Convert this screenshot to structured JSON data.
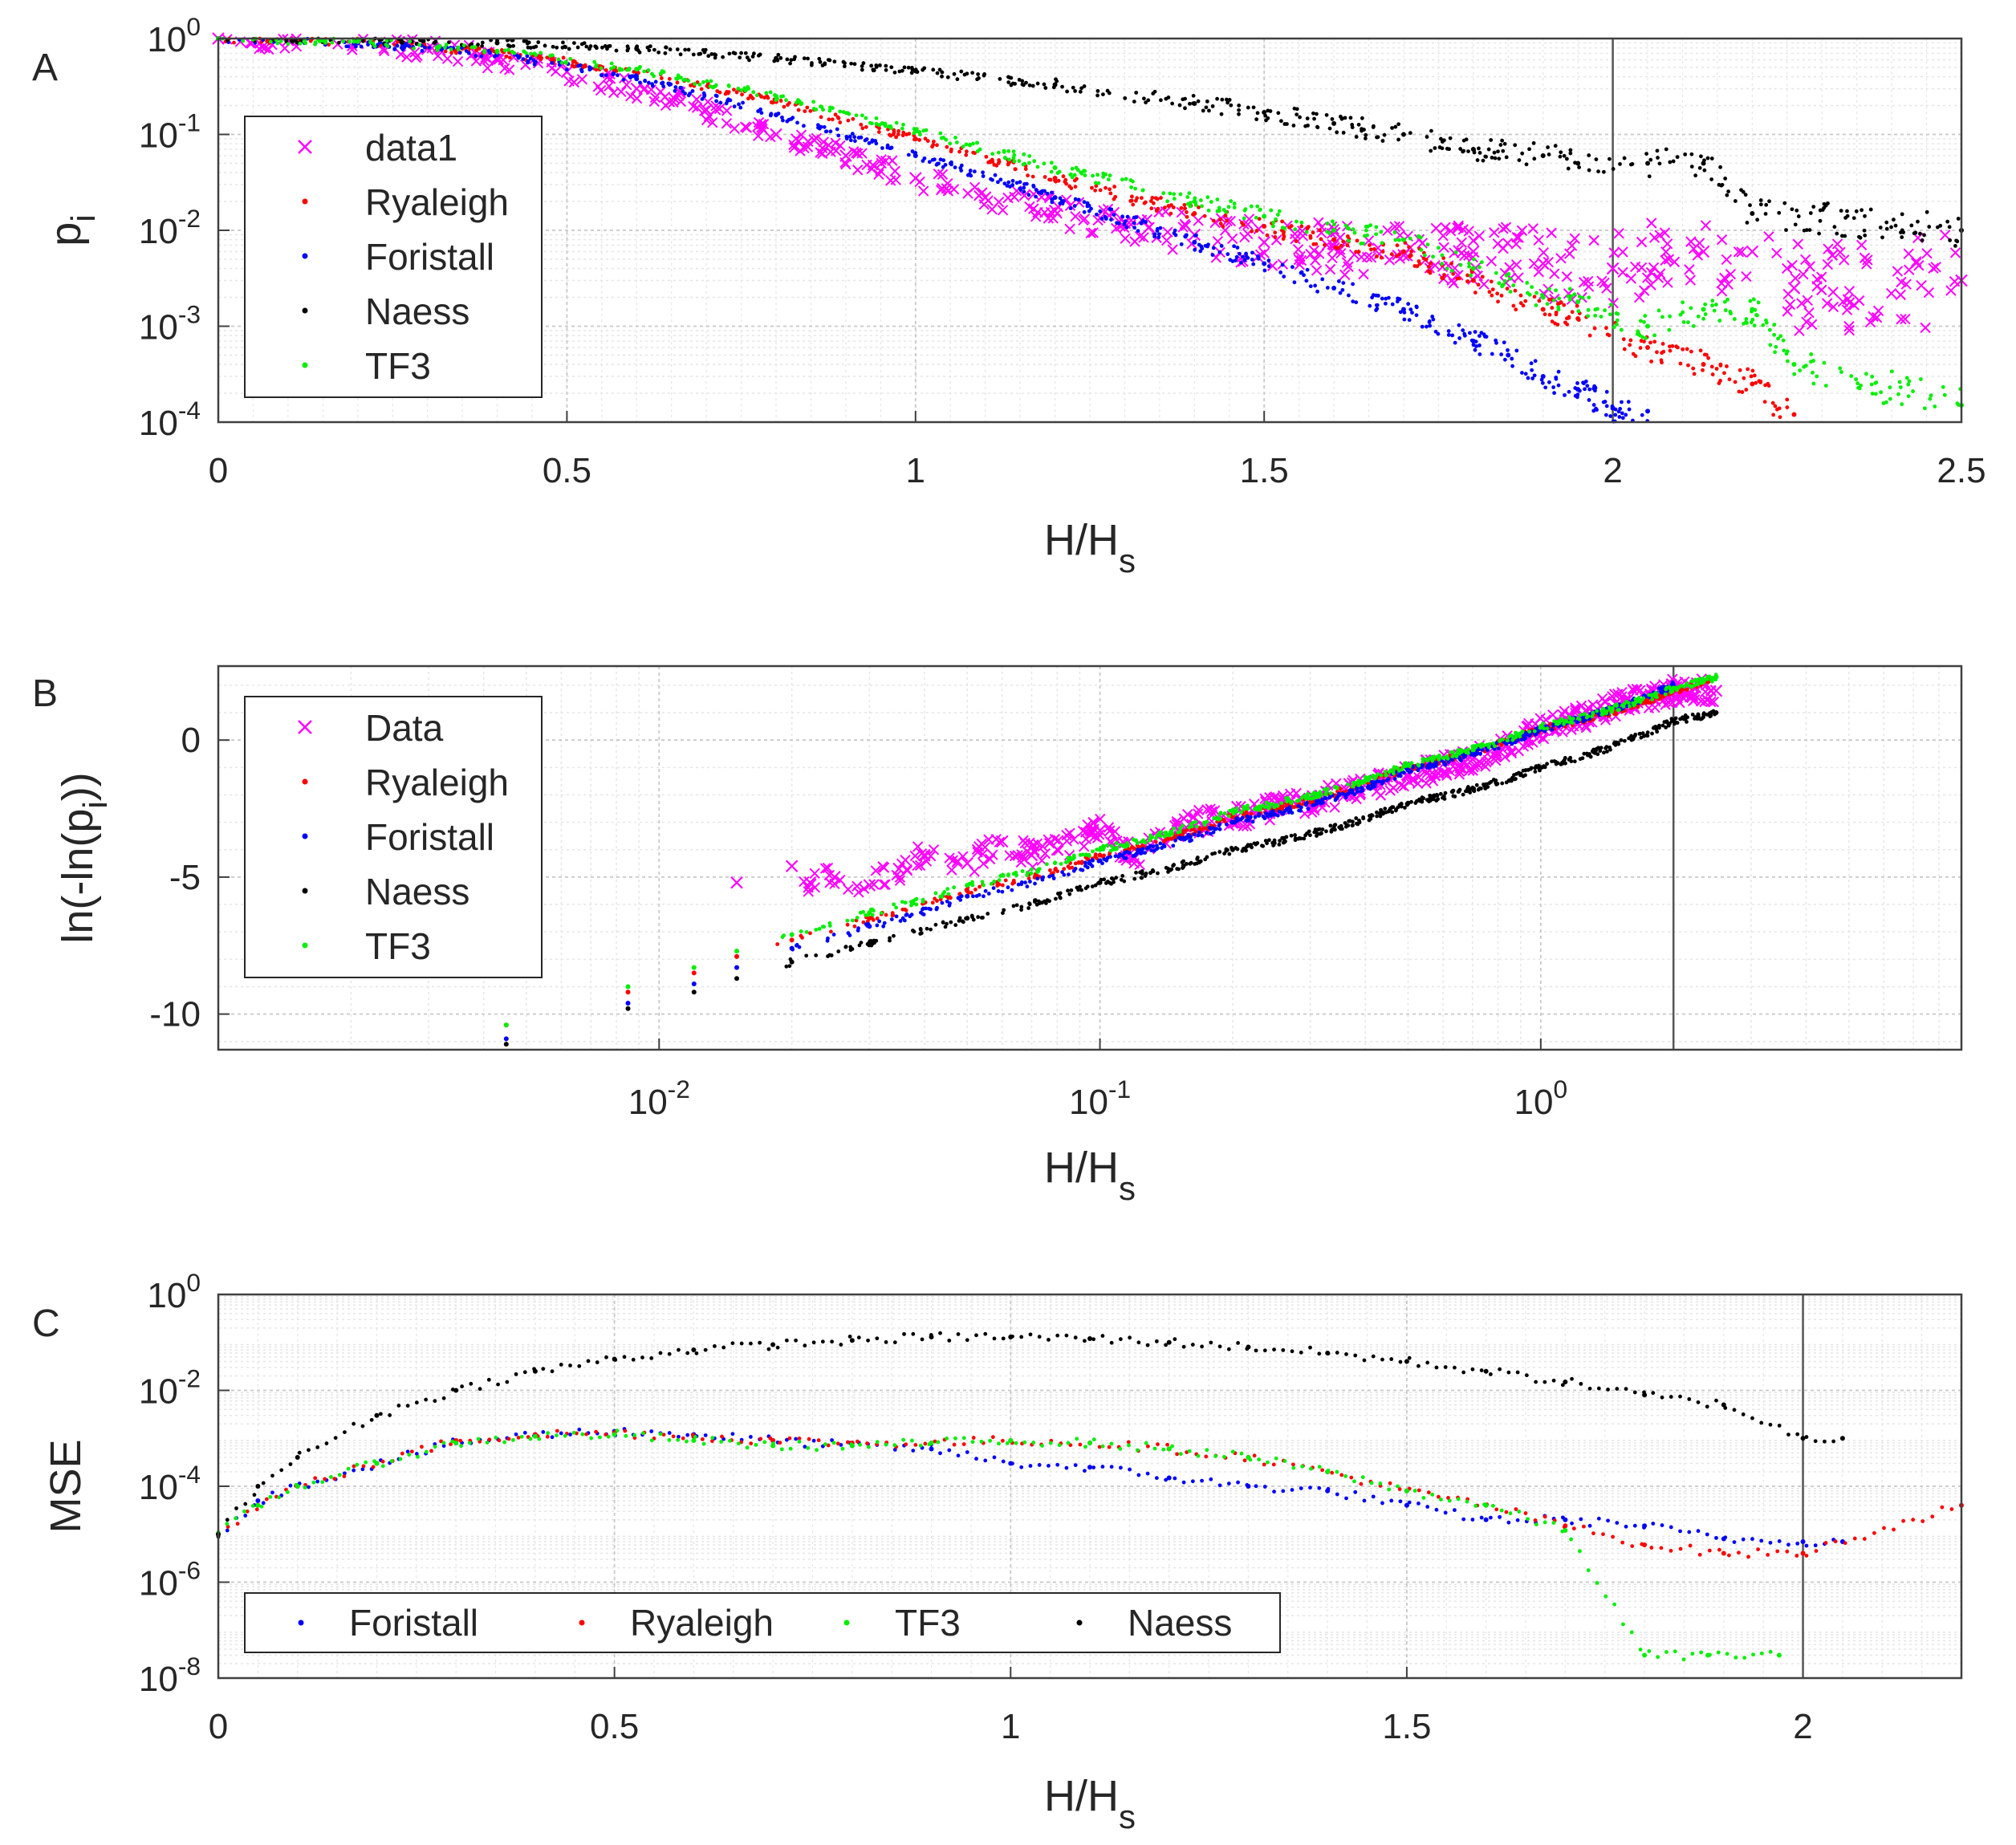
{
  "colors": {
    "data": "#ff00ff",
    "ryaleigh": "#ff0000",
    "foristall": "#0000ff",
    "naess": "#000000",
    "tf3": "#00ee00",
    "grid_major": "#c8c8c8",
    "grid_minor": "#e6e6e6",
    "axes": "#404040"
  },
  "chart_data": [
    {
      "id": "A",
      "panel_label": "A",
      "type": "scatter",
      "x_scale": "linear",
      "y_scale": "log",
      "xlim": [
        0,
        2.5
      ],
      "ylim": [
        0.0001,
        1
      ],
      "xticks": [
        {
          "v": 0,
          "label": "0"
        },
        {
          "v": 0.5,
          "label": "0.5"
        },
        {
          "v": 1,
          "label": "1"
        },
        {
          "v": 1.5,
          "label": "1.5"
        },
        {
          "v": 2,
          "label": "2"
        },
        {
          "v": 2.5,
          "label": "2.5"
        }
      ],
      "yticks": [
        {
          "v": 0.0001,
          "base": "10",
          "exp": "-4"
        },
        {
          "v": 0.001,
          "base": "10",
          "exp": "-3"
        },
        {
          "v": 0.01,
          "base": "10",
          "exp": "-2"
        },
        {
          "v": 0.1,
          "base": "10",
          "exp": "-1"
        },
        {
          "v": 1,
          "base": "10",
          "exp": "0"
        }
      ],
      "xlabel": {
        "main": "H/H",
        "sub": "s"
      },
      "ylabel": {
        "main": "p",
        "sub": "i"
      },
      "vline": 2,
      "legend_position": "left",
      "legend": [
        {
          "label": "data1",
          "color": "#ff00ff",
          "marker": "x"
        },
        {
          "label": "Ryaleigh",
          "color": "#ff0000",
          "marker": "dot"
        },
        {
          "label": "Foristall",
          "color": "#0000ff",
          "marker": "dot"
        },
        {
          "label": "Naess",
          "color": "#000000",
          "marker": "dot"
        },
        {
          "label": "TF3",
          "color": "#00ee00",
          "marker": "dot"
        }
      ],
      "series": [
        {
          "name": "data1",
          "marker": "x",
          "color": "#ff00ff",
          "x": [
            0,
            0.1,
            0.2,
            0.3,
            0.4,
            0.5,
            0.6,
            0.7,
            0.8,
            0.9,
            1.0,
            1.1,
            1.2,
            1.3,
            1.4,
            1.5,
            1.6,
            1.7,
            1.8,
            1.9,
            2.0,
            2.13,
            2.2,
            2.26,
            2.5
          ],
          "y": [
            1,
            0.96,
            0.9,
            0.78,
            0.6,
            0.45,
            0.3,
            0.18,
            0.1,
            0.06,
            0.035,
            0.022,
            0.016,
            0.012,
            0.009,
            0.0075,
            0.0065,
            0.0055,
            0.006,
            0.0045,
            0.004,
            0.006,
            0.006,
            0.0025,
            0.003
          ]
        },
        {
          "name": "Ryaleigh",
          "marker": "dot",
          "color": "#ff0000",
          "x": [
            0,
            0.2,
            0.4,
            0.6,
            0.8,
            1.0,
            1.2,
            1.4,
            1.5,
            1.6,
            1.7,
            1.8,
            1.9,
            1.95,
            2.05,
            2.13,
            2.2,
            2.26
          ],
          "y": [
            1,
            0.92,
            0.72,
            0.45,
            0.22,
            0.09,
            0.035,
            0.015,
            0.011,
            0.008,
            0.006,
            0.003,
            0.0015,
            0.0012,
            0.0006,
            0.0004,
            0.00025,
            0.00012
          ]
        },
        {
          "name": "Foristall",
          "marker": "dot",
          "color": "#0000ff",
          "x": [
            0,
            0.2,
            0.4,
            0.6,
            0.8,
            1.0,
            1.2,
            1.4,
            1.5,
            1.6,
            1.7,
            1.8,
            1.85,
            1.9,
            1.95,
            2.0,
            2.05
          ],
          "y": [
            1,
            0.9,
            0.68,
            0.38,
            0.16,
            0.06,
            0.022,
            0.0075,
            0.0045,
            0.0025,
            0.0015,
            0.0007,
            0.0005,
            0.0003,
            0.00022,
            0.00014,
            0.00013
          ]
        },
        {
          "name": "Naess",
          "marker": "dot",
          "color": "#000000",
          "x": [
            0,
            0.2,
            0.4,
            0.6,
            0.8,
            1.0,
            1.2,
            1.4,
            1.5,
            1.6,
            1.7,
            1.8,
            1.9,
            1.95,
            2.05,
            2.13,
            2.2,
            2.5
          ],
          "y": [
            1,
            0.97,
            0.9,
            0.78,
            0.62,
            0.46,
            0.33,
            0.21,
            0.17,
            0.13,
            0.1,
            0.07,
            0.06,
            0.05,
            0.05,
            0.05,
            0.015,
            0.01
          ]
        },
        {
          "name": "TF3",
          "marker": "dot",
          "color": "#00ee00",
          "x": [
            0,
            0.2,
            0.4,
            0.6,
            0.8,
            1.0,
            1.2,
            1.4,
            1.5,
            1.6,
            1.7,
            1.8,
            1.9,
            1.95,
            2.05,
            2.13,
            2.2,
            2.26,
            2.5
          ],
          "y": [
            1,
            0.93,
            0.74,
            0.48,
            0.25,
            0.11,
            0.045,
            0.02,
            0.014,
            0.01,
            0.008,
            0.004,
            0.002,
            0.0018,
            0.001,
            0.0015,
            0.0015,
            0.0004,
            0.00015
          ]
        }
      ]
    },
    {
      "id": "B",
      "panel_label": "B",
      "type": "scatter",
      "x_scale": "log",
      "y_scale": "linear",
      "xlim": [
        0.001,
        9
      ],
      "ylim": [
        -11.3,
        2.7
      ],
      "xticks": [
        {
          "v": 0.01,
          "base": "10",
          "exp": "-2"
        },
        {
          "v": 0.1,
          "base": "10",
          "exp": "-1"
        },
        {
          "v": 1,
          "base": "10",
          "exp": "0"
        }
      ],
      "yticks": [
        {
          "v": -10,
          "label": "-10"
        },
        {
          "v": -5,
          "label": "-5"
        },
        {
          "v": 0,
          "label": "0"
        }
      ],
      "xlabel": {
        "main": "H/H",
        "sub": "s"
      },
      "ylabel": {
        "main": "ln(-ln(p",
        "sub": "i",
        "tail": "))"
      },
      "vline": 2,
      "legend_position": "left",
      "legend": [
        {
          "label": "Data",
          "color": "#ff00ff",
          "marker": "x"
        },
        {
          "label": "Ryaleigh",
          "color": "#ff0000",
          "marker": "dot"
        },
        {
          "label": "Foristall",
          "color": "#0000ff",
          "marker": "dot"
        },
        {
          "label": "Naess",
          "color": "#000000",
          "marker": "dot"
        },
        {
          "label": "TF3",
          "color": "#00ee00",
          "marker": "dot"
        }
      ],
      "series": [
        {
          "name": "Data",
          "marker": "x",
          "color": "#ff00ff",
          "x": [
            0.015,
            0.02,
            0.022,
            0.025,
            0.03,
            0.035,
            0.04,
            0.05,
            0.06,
            0.07,
            0.08,
            0.1,
            0.12,
            0.15,
            0.2,
            0.3,
            0.5,
            0.7,
            1.0,
            1.5,
            2.0,
            2.5
          ],
          "y": [
            -5.2,
            -4.6,
            -5.2,
            -5.0,
            -5.3,
            -4.7,
            -4.2,
            -4.5,
            -3.7,
            -4.2,
            -4.0,
            -3.3,
            -4.3,
            -3.1,
            -2.8,
            -2.2,
            -1.3,
            -0.7,
            0.4,
            1.3,
            1.8,
            1.8
          ]
        },
        {
          "name": "Ryaleigh",
          "marker": "dot",
          "color": "#ff0000",
          "x": [
            0.0045,
            0.0085,
            0.012,
            0.015,
            0.02,
            0.03,
            0.05,
            0.1,
            0.2,
            0.5,
            1.0,
            2.0,
            2.5
          ],
          "y": [
            -10.4,
            -9.2,
            -8.5,
            -7.9,
            -7.3,
            -6.5,
            -5.5,
            -4.2,
            -2.8,
            -1.0,
            0.4,
            1.8,
            2.3
          ]
        },
        {
          "name": "Foristall",
          "marker": "dot",
          "color": "#0000ff",
          "x": [
            0.0045,
            0.0085,
            0.012,
            0.015,
            0.02,
            0.03,
            0.05,
            0.1,
            0.2,
            0.5,
            1.0,
            2.0
          ],
          "y": [
            -10.9,
            -9.6,
            -8.9,
            -8.3,
            -7.6,
            -6.8,
            -5.7,
            -4.4,
            -3.0,
            -1.1,
            0.4,
            2.0
          ]
        },
        {
          "name": "Naess",
          "marker": "dot",
          "color": "#000000",
          "x": [
            0.0045,
            0.0085,
            0.012,
            0.015,
            0.02,
            0.03,
            0.05,
            0.1,
            0.2,
            0.5,
            1.0,
            2.0,
            2.5
          ],
          "y": [
            -11.1,
            -9.8,
            -9.2,
            -8.7,
            -8.1,
            -7.4,
            -6.5,
            -5.2,
            -4.0,
            -2.3,
            -1.0,
            0.7,
            1.0
          ]
        },
        {
          "name": "TF3",
          "marker": "dot",
          "color": "#00ee00",
          "x": [
            0.0045,
            0.0085,
            0.012,
            0.015,
            0.02,
            0.03,
            0.05,
            0.1,
            0.2,
            0.5,
            1.0,
            2.0,
            2.5
          ],
          "y": [
            -10.4,
            -9.0,
            -8.3,
            -7.7,
            -7.1,
            -6.3,
            -5.3,
            -4.0,
            -2.6,
            -0.9,
            0.5,
            1.9,
            2.3
          ]
        }
      ]
    },
    {
      "id": "C",
      "panel_label": "C",
      "type": "scatter",
      "x_scale": "linear",
      "y_scale": "log",
      "xlim": [
        0,
        2.2
      ],
      "ylim": [
        1e-08,
        1
      ],
      "xticks": [
        {
          "v": 0,
          "label": "0"
        },
        {
          "v": 0.5,
          "label": "0.5"
        },
        {
          "v": 1,
          "label": "1"
        },
        {
          "v": 1.5,
          "label": "1.5"
        },
        {
          "v": 2,
          "label": "2"
        }
      ],
      "yticks": [
        {
          "v": 1e-08,
          "base": "10",
          "exp": "-8"
        },
        {
          "v": 1e-06,
          "base": "10",
          "exp": "-6"
        },
        {
          "v": 0.0001,
          "base": "10",
          "exp": "-4"
        },
        {
          "v": 0.01,
          "base": "10",
          "exp": "-2"
        },
        {
          "v": 1,
          "base": "10",
          "exp": "0"
        }
      ],
      "xlabel": {
        "main": "H/H",
        "sub": "s"
      },
      "ylabel": {
        "main": "MSE",
        "sub": ""
      },
      "vline": 2,
      "legend_position": "bottom",
      "legend": [
        {
          "label": "Foristall",
          "color": "#0000ff",
          "marker": "dot"
        },
        {
          "label": "Ryaleigh",
          "color": "#ff0000",
          "marker": "dot"
        },
        {
          "label": "TF3",
          "color": "#00ee00",
          "marker": "dot"
        },
        {
          "label": "Naess",
          "color": "#000000",
          "marker": "dot"
        }
      ],
      "series": [
        {
          "name": "Foristall",
          "marker": "dot",
          "color": "#0000ff",
          "x": [
            0,
            0.05,
            0.1,
            0.2,
            0.3,
            0.4,
            0.5,
            0.6,
            0.7,
            0.8,
            0.9,
            1.0,
            1.1,
            1.2,
            1.3,
            1.4,
            1.5,
            1.6,
            1.7,
            1.8,
            1.9,
            2.0,
            2.05
          ],
          "y": [
            1e-05,
            5e-05,
            0.0001,
            0.0003,
            0.0008,
            0.0012,
            0.0014,
            0.0012,
            0.0009,
            0.0007,
            0.0006,
            0.0003,
            0.00025,
            0.00015,
            0.0001,
            8e-05,
            4e-05,
            2e-05,
            2e-05,
            1.5e-05,
            8e-06,
            7e-06,
            7e-06
          ]
        },
        {
          "name": "Ryaleigh",
          "marker": "dot",
          "color": "#ff0000",
          "x": [
            0,
            0.05,
            0.1,
            0.2,
            0.3,
            0.4,
            0.5,
            0.6,
            0.7,
            0.8,
            0.9,
            1.0,
            1.1,
            1.2,
            1.3,
            1.4,
            1.5,
            1.6,
            1.7,
            1.8,
            1.9,
            2.0,
            2.2
          ],
          "y": [
            1e-05,
            4e-05,
            0.0001,
            0.0003,
            0.0009,
            0.0012,
            0.0013,
            0.0011,
            0.0009,
            0.0008,
            0.0008,
            0.0009,
            0.0008,
            0.0006,
            0.0004,
            0.0002,
            8e-05,
            4e-05,
            1.5e-05,
            6e-06,
            4e-06,
            4e-06,
            4e-05
          ]
        },
        {
          "name": "TF3",
          "marker": "dot",
          "color": "#00ee00",
          "x": [
            0,
            0.05,
            0.1,
            0.2,
            0.3,
            0.4,
            0.5,
            0.6,
            0.7,
            0.8,
            0.9,
            1.0,
            1.1,
            1.2,
            1.3,
            1.4,
            1.5,
            1.6,
            1.7,
            1.8,
            1.88,
            1.97
          ],
          "y": [
            1e-05,
            4e-05,
            0.0001,
            0.0003,
            0.0008,
            0.0011,
            0.0012,
            0.0009,
            0.0007,
            0.0007,
            0.0008,
            0.0009,
            0.0008,
            0.0006,
            0.0004,
            0.0002,
            8e-05,
            4e-05,
            1.2e-05,
            3e-08,
            3e-08,
            3e-08
          ]
        },
        {
          "name": "Naess",
          "marker": "dot",
          "color": "#000000",
          "x": [
            0,
            0.05,
            0.1,
            0.2,
            0.3,
            0.4,
            0.5,
            0.6,
            0.7,
            0.8,
            0.9,
            1.0,
            1.1,
            1.2,
            1.3,
            1.4,
            1.5,
            1.6,
            1.7,
            1.8,
            1.9,
            2.0,
            2.05
          ],
          "y": [
            1e-05,
            0.0001,
            0.0004,
            0.003,
            0.01,
            0.025,
            0.045,
            0.07,
            0.09,
            0.11,
            0.13,
            0.13,
            0.12,
            0.1,
            0.08,
            0.06,
            0.04,
            0.025,
            0.015,
            0.008,
            0.005,
            0.001,
            0.001
          ]
        }
      ]
    }
  ]
}
